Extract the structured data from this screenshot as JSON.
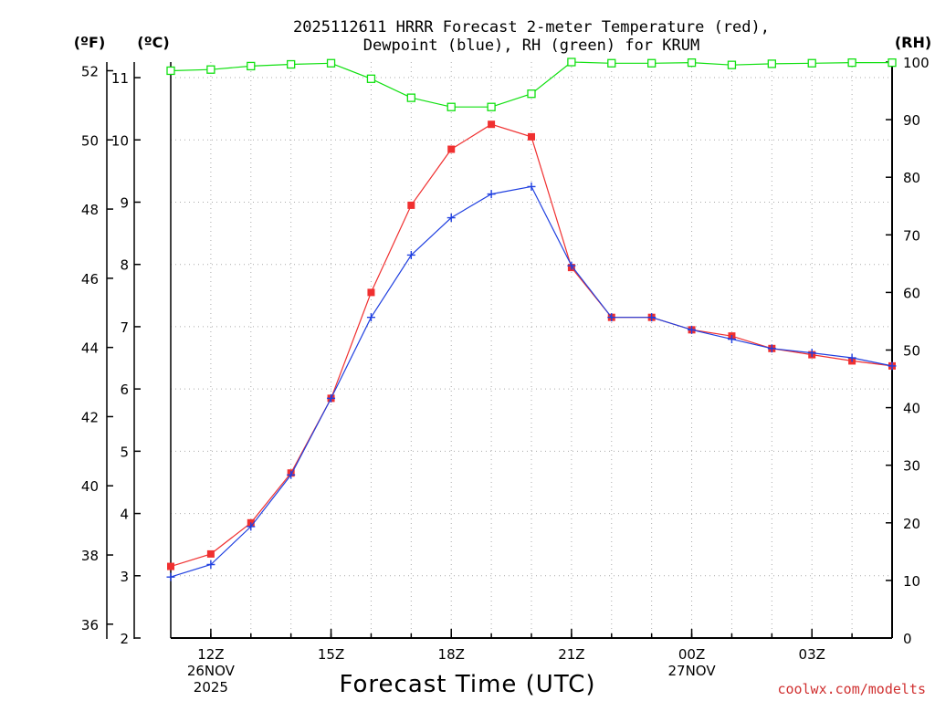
{
  "chart_data": {
    "type": "line",
    "title_line1": "2025112611 HRRR Forecast 2-meter Temperature (red),",
    "title_line2": "Dewpoint (blue), RH (green) for KRUM",
    "unit_f": "(ºF)",
    "unit_c": "(ºC)",
    "unit_rh": "(RH)",
    "xlabel": "Forecast Time (UTC)",
    "credit": "coolwx.com/modelts",
    "x_hours": [
      11,
      12,
      13,
      14,
      15,
      16,
      17,
      18,
      19,
      20,
      21,
      22,
      23,
      24,
      25,
      26,
      27,
      28,
      29
    ],
    "xlim": [
      11,
      29
    ],
    "x_ticks": [
      {
        "hour": 12,
        "label": "12Z",
        "sub1": "26NOV",
        "sub2": "2025"
      },
      {
        "hour": 15,
        "label": "15Z",
        "sub1": "",
        "sub2": ""
      },
      {
        "hour": 18,
        "label": "18Z",
        "sub1": "",
        "sub2": ""
      },
      {
        "hour": 21,
        "label": "21Z",
        "sub1": "",
        "sub2": ""
      },
      {
        "hour": 24,
        "label": "00Z",
        "sub1": "27NOV",
        "sub2": ""
      },
      {
        "hour": 27,
        "label": "03Z",
        "sub1": "",
        "sub2": ""
      }
    ],
    "celsius_axis": {
      "min": 2,
      "max": 11.25,
      "ticks": [
        "2",
        "3",
        "4",
        "5",
        "6",
        "7",
        "8",
        "9",
        "10",
        "11"
      ]
    },
    "fahrenheit_axis": {
      "ticks": [
        "36",
        "38",
        "40",
        "42",
        "44",
        "46",
        "48",
        "50",
        "52"
      ]
    },
    "rh_axis": {
      "min": 0,
      "max": 100,
      "ticks": [
        "0",
        "10",
        "20",
        "30",
        "40",
        "50",
        "60",
        "70",
        "80",
        "90",
        "100"
      ]
    },
    "colors": {
      "temperature": "#f03030",
      "dewpoint": "#2040e0",
      "rh": "#10e010",
      "grid": "#aaaaaa"
    },
    "series": [
      {
        "name": "Temperature",
        "unit": "C",
        "color": "#f03030",
        "marker": "filled-square",
        "values": [
          3.15,
          3.35,
          3.85,
          4.65,
          5.85,
          7.55,
          8.95,
          9.85,
          10.25,
          10.05,
          7.95,
          7.15,
          7.15,
          6.95,
          6.85,
          6.65,
          6.55,
          6.45,
          6.37
        ]
      },
      {
        "name": "Dewpoint",
        "unit": "C",
        "color": "#2040e0",
        "marker": "plus",
        "values": [
          2.98,
          3.18,
          3.79,
          4.62,
          5.85,
          7.15,
          8.15,
          8.75,
          9.13,
          9.25,
          7.98,
          7.15,
          7.15,
          6.95,
          6.8,
          6.65,
          6.58,
          6.5,
          6.37
        ]
      },
      {
        "name": "RH",
        "unit": "%",
        "color": "#10e010",
        "marker": "open-square",
        "values": [
          98.5,
          98.7,
          99.3,
          99.6,
          99.8,
          97.1,
          93.8,
          92.2,
          92.2,
          94.5,
          100,
          99.8,
          99.8,
          99.9,
          99.5,
          99.7,
          99.8,
          99.9,
          99.9
        ]
      }
    ]
  }
}
